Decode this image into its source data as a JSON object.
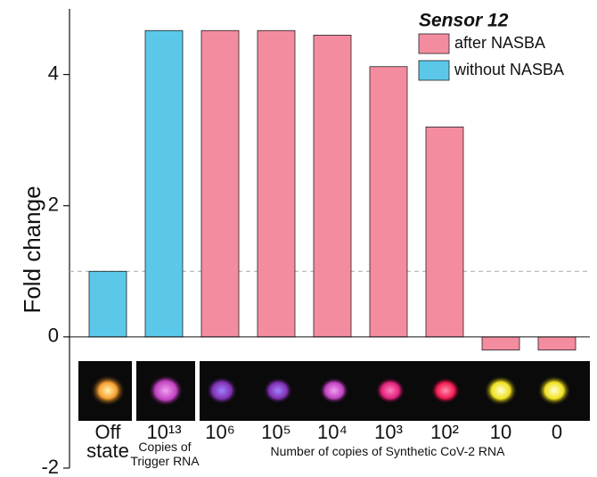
{
  "chart_data": {
    "type": "bar",
    "y_label": "Fold change",
    "legend_title": "Sensor 12",
    "categories": [
      "Off state",
      "10¹³",
      "10⁶",
      "10⁵",
      "10⁴",
      "10³",
      "10²",
      "10",
      "0"
    ],
    "series": [
      {
        "name": "after NASBA",
        "color": "#f48ca0",
        "values": [
          null,
          null,
          4.67,
          4.67,
          4.6,
          4.12,
          3.2,
          -0.2,
          -0.2
        ]
      },
      {
        "name": "without NASBA",
        "color": "#5bc8ea",
        "values": [
          1.0,
          4.67,
          null,
          null,
          null,
          null,
          null,
          null,
          null
        ]
      }
    ],
    "reference_line": 1,
    "ylim": [
      -2,
      5
    ],
    "yticks": [
      -2,
      0,
      2,
      4
    ],
    "annotations": [
      "Copies of Trigger RNA",
      "Number of copies of Synthetic CoV-2 RNA"
    ]
  }
}
